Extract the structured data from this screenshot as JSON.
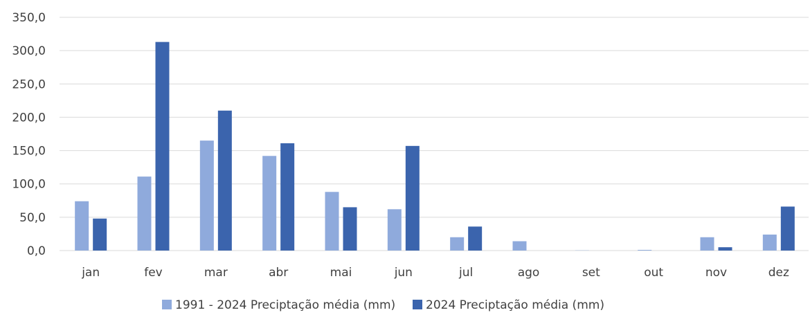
{
  "chart_data": {
    "type": "bar",
    "title": "",
    "xlabel": "",
    "ylabel": "",
    "categories": [
      "jan",
      "fev",
      "mar",
      "abr",
      "mai",
      "jun",
      "jul",
      "ago",
      "set",
      "out",
      "nov",
      "dez"
    ],
    "series": [
      {
        "name": "1991 - 2024 Preciptação média (mm)",
        "color": "#8faadc",
        "values": [
          74.0,
          111.0,
          165.0,
          142.0,
          88.0,
          62.0,
          20.0,
          14.0,
          0.3,
          1.0,
          20.0,
          24.0
        ]
      },
      {
        "name": "2024 Preciptação média (mm)",
        "color": "#3b64ad",
        "values": [
          48.0,
          313.0,
          210.0,
          161.0,
          65.0,
          157.0,
          36.0,
          0.0,
          0.0,
          0.0,
          5.0,
          66.0
        ]
      }
    ],
    "ylim": [
      0,
      350
    ],
    "yticks": [
      "0,0",
      "50,0",
      "100,0",
      "150,0",
      "200,0",
      "250,0",
      "300,0",
      "350,0"
    ],
    "grid": true,
    "legend_position": "bottom"
  }
}
